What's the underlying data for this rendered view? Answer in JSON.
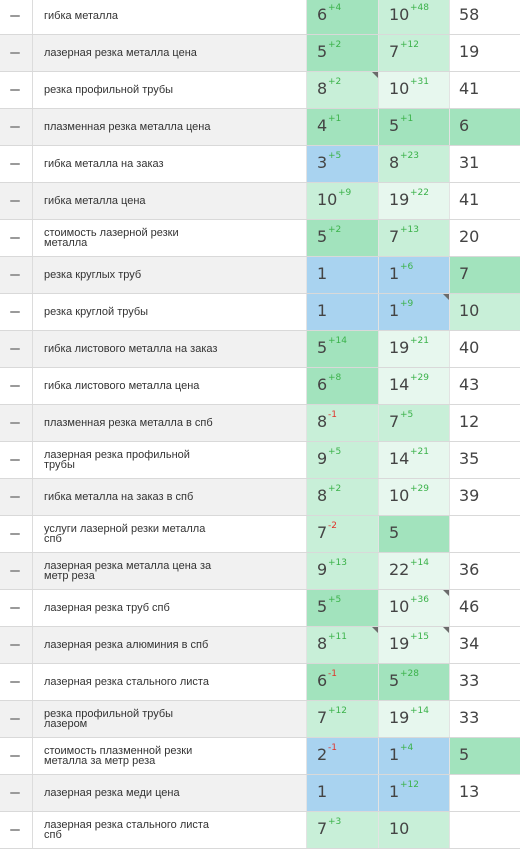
{
  "legend": {
    "g": "medium green",
    "l": "light green",
    "p": "pale green",
    "b": "light blue",
    "w": "white"
  },
  "colors": {
    "g": "#a2e3bd",
    "l": "#c8efd8",
    "p": "#e7f7ee",
    "b": "#a9d3f0",
    "delta_up": "#3bb24a",
    "delta_down": "#e0332a"
  },
  "rows": [
    {
      "keyword": "гибка металла",
      "c1": {
        "v": "6",
        "d": "+4",
        "bg": "g"
      },
      "c2": {
        "v": "10",
        "d": "+48",
        "bg": "l"
      },
      "c3": {
        "v": "58",
        "d": "",
        "bg": "w"
      }
    },
    {
      "keyword": "лазерная резка металла цена",
      "c1": {
        "v": "5",
        "d": "+2",
        "bg": "g"
      },
      "c2": {
        "v": "7",
        "d": "+12",
        "bg": "l"
      },
      "c3": {
        "v": "19",
        "d": "",
        "bg": "w"
      }
    },
    {
      "keyword": "резка профильной трубы",
      "c1": {
        "v": "8",
        "d": "+2",
        "bg": "l",
        "tri": true
      },
      "c2": {
        "v": "10",
        "d": "+31",
        "bg": "p"
      },
      "c3": {
        "v": "41",
        "d": "",
        "bg": "w"
      }
    },
    {
      "keyword": "плазменная резка металла цена",
      "c1": {
        "v": "4",
        "d": "+1",
        "bg": "g"
      },
      "c2": {
        "v": "5",
        "d": "+1",
        "bg": "g"
      },
      "c3": {
        "v": "6",
        "d": "",
        "bg": "g"
      }
    },
    {
      "keyword": "гибка металла на заказ",
      "c1": {
        "v": "3",
        "d": "+5",
        "bg": "b"
      },
      "c2": {
        "v": "8",
        "d": "+23",
        "bg": "l"
      },
      "c3": {
        "v": "31",
        "d": "",
        "bg": "w"
      }
    },
    {
      "keyword": "гибка металла цена",
      "c1": {
        "v": "10",
        "d": "+9",
        "bg": "l"
      },
      "c2": {
        "v": "19",
        "d": "+22",
        "bg": "p"
      },
      "c3": {
        "v": "41",
        "d": "",
        "bg": "w"
      }
    },
    {
      "keyword": "стоимость лазерной резки\nметалла",
      "c1": {
        "v": "5",
        "d": "+2",
        "bg": "g"
      },
      "c2": {
        "v": "7",
        "d": "+13",
        "bg": "l"
      },
      "c3": {
        "v": "20",
        "d": "",
        "bg": "w"
      }
    },
    {
      "keyword": "резка круглых труб",
      "c1": {
        "v": "1",
        "d": "",
        "bg": "b"
      },
      "c2": {
        "v": "1",
        "d": "+6",
        "bg": "b"
      },
      "c3": {
        "v": "7",
        "d": "",
        "bg": "g"
      }
    },
    {
      "keyword": "резка круглой трубы",
      "c1": {
        "v": "1",
        "d": "",
        "bg": "b"
      },
      "c2": {
        "v": "1",
        "d": "+9",
        "bg": "b",
        "tri": true
      },
      "c3": {
        "v": "10",
        "d": "",
        "bg": "l"
      }
    },
    {
      "keyword": "гибка листового металла на заказ",
      "c1": {
        "v": "5",
        "d": "+14",
        "bg": "g"
      },
      "c2": {
        "v": "19",
        "d": "+21",
        "bg": "p"
      },
      "c3": {
        "v": "40",
        "d": "",
        "bg": "w"
      }
    },
    {
      "keyword": "гибка листового металла цена",
      "c1": {
        "v": "6",
        "d": "+8",
        "bg": "g"
      },
      "c2": {
        "v": "14",
        "d": "+29",
        "bg": "p"
      },
      "c3": {
        "v": "43",
        "d": "",
        "bg": "w"
      }
    },
    {
      "keyword": "плазменная резка металла в спб",
      "c1": {
        "v": "8",
        "d": "-1",
        "bg": "l"
      },
      "c2": {
        "v": "7",
        "d": "+5",
        "bg": "l"
      },
      "c3": {
        "v": "12",
        "d": "",
        "bg": "w"
      }
    },
    {
      "keyword": "лазерная резка профильной\nтрубы",
      "c1": {
        "v": "9",
        "d": "+5",
        "bg": "l"
      },
      "c2": {
        "v": "14",
        "d": "+21",
        "bg": "p"
      },
      "c3": {
        "v": "35",
        "d": "",
        "bg": "w"
      }
    },
    {
      "keyword": "гибка металла на заказ в спб",
      "c1": {
        "v": "8",
        "d": "+2",
        "bg": "l"
      },
      "c2": {
        "v": "10",
        "d": "+29",
        "bg": "p"
      },
      "c3": {
        "v": "39",
        "d": "",
        "bg": "w"
      }
    },
    {
      "keyword": "услуги лазерной резки металла\nспб",
      "c1": {
        "v": "7",
        "d": "-2",
        "bg": "l"
      },
      "c2": {
        "v": "5",
        "d": "",
        "bg": "g"
      },
      "c3": {
        "v": "",
        "d": "",
        "bg": "w"
      }
    },
    {
      "keyword": "лазерная резка металла цена за\nметр реза",
      "c1": {
        "v": "9",
        "d": "+13",
        "bg": "l"
      },
      "c2": {
        "v": "22",
        "d": "+14",
        "bg": "p"
      },
      "c3": {
        "v": "36",
        "d": "",
        "bg": "w"
      }
    },
    {
      "keyword": "лазерная резка труб спб",
      "c1": {
        "v": "5",
        "d": "+5",
        "bg": "g"
      },
      "c2": {
        "v": "10",
        "d": "+36",
        "bg": "p",
        "tri": true
      },
      "c3": {
        "v": "46",
        "d": "",
        "bg": "w"
      }
    },
    {
      "keyword": "лазерная резка алюминия в спб",
      "c1": {
        "v": "8",
        "d": "+11",
        "bg": "l",
        "tri": true
      },
      "c2": {
        "v": "19",
        "d": "+15",
        "bg": "p",
        "tri": true
      },
      "c3": {
        "v": "34",
        "d": "",
        "bg": "w"
      }
    },
    {
      "keyword": "лазерная резка стального листа",
      "c1": {
        "v": "6",
        "d": "-1",
        "bg": "g"
      },
      "c2": {
        "v": "5",
        "d": "+28",
        "bg": "g"
      },
      "c3": {
        "v": "33",
        "d": "",
        "bg": "w"
      }
    },
    {
      "keyword": "резка профильной трубы\nлазером",
      "c1": {
        "v": "7",
        "d": "+12",
        "bg": "l"
      },
      "c2": {
        "v": "19",
        "d": "+14",
        "bg": "p"
      },
      "c3": {
        "v": "33",
        "d": "",
        "bg": "w"
      }
    },
    {
      "keyword": "стоимость плазменной резки\nметалла за метр реза",
      "c1": {
        "v": "2",
        "d": "-1",
        "bg": "b"
      },
      "c2": {
        "v": "1",
        "d": "+4",
        "bg": "b"
      },
      "c3": {
        "v": "5",
        "d": "",
        "bg": "g"
      }
    },
    {
      "keyword": "лазерная резка меди цена",
      "c1": {
        "v": "1",
        "d": "",
        "bg": "b"
      },
      "c2": {
        "v": "1",
        "d": "+12",
        "bg": "b"
      },
      "c3": {
        "v": "13",
        "d": "",
        "bg": "w"
      }
    },
    {
      "keyword": "лазерная резка стального листа\nспб",
      "c1": {
        "v": "7",
        "d": "+3",
        "bg": "l"
      },
      "c2": {
        "v": "10",
        "d": "",
        "bg": "l"
      },
      "c3": {
        "v": "",
        "d": "",
        "bg": "w"
      }
    }
  ]
}
